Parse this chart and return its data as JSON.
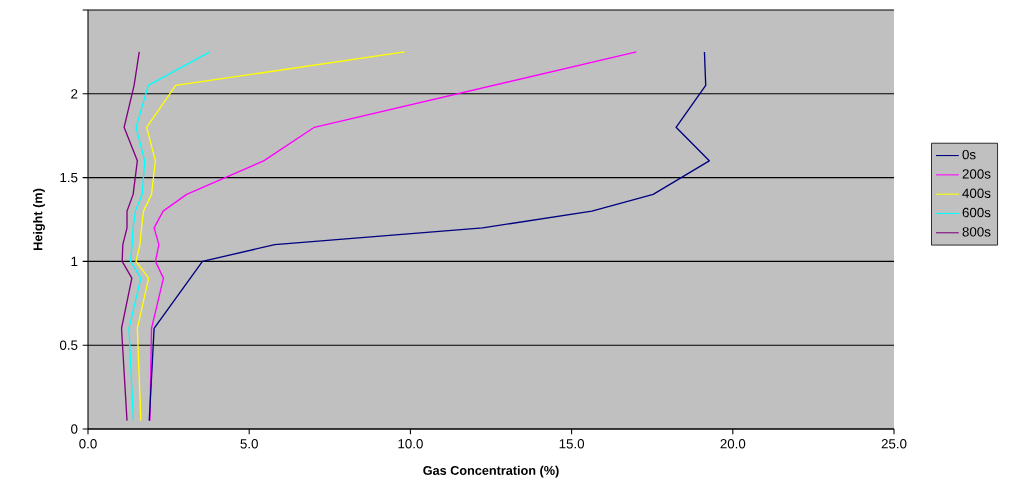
{
  "chart_data": {
    "type": "line",
    "xlabel": "Gas Concentration (%)",
    "ylabel": "Height (m)",
    "xlim": [
      0,
      25
    ],
    "ylim": [
      0,
      2.5
    ],
    "xticks": [
      {
        "value": 0,
        "label": "0.0"
      },
      {
        "value": 5,
        "label": "5.0"
      },
      {
        "value": 10,
        "label": "10.0"
      },
      {
        "value": 15,
        "label": "15.0"
      },
      {
        "value": 20,
        "label": "20.0"
      },
      {
        "value": 25,
        "label": "25.0"
      }
    ],
    "yticks": [
      0,
      0.5,
      1,
      1.5,
      2,
      {
        "value": 2.5,
        "label": null
      }
    ],
    "grid": "y",
    "legend": "right",
    "series": [
      {
        "name": "0s",
        "color": "#000080",
        "x": [
          1.9,
          2.05,
          3.55,
          5.79,
          12.24,
          15.63,
          17.53,
          19.27,
          18.24,
          19.16,
          19.12
        ],
        "values": [
          0.05,
          0.6,
          1.0,
          1.1,
          1.2,
          1.3,
          1.4,
          1.6,
          1.8,
          2.05,
          2.25
        ]
      },
      {
        "name": "200s",
        "color": "#ff00ff",
        "x": [
          1.92,
          1.97,
          2.34,
          2.09,
          2.2,
          2.05,
          2.33,
          3.06,
          5.45,
          7.02,
          17.01
        ],
        "values": [
          0.05,
          0.6,
          0.9,
          1.0,
          1.1,
          1.2,
          1.3,
          1.4,
          1.6,
          1.8,
          2.25
        ]
      },
      {
        "name": "400s",
        "color": "#ffff00",
        "x": [
          1.64,
          1.53,
          1.88,
          1.49,
          1.61,
          1.66,
          1.72,
          1.97,
          2.09,
          1.82,
          2.72,
          9.82
        ],
        "values": [
          0.05,
          0.6,
          0.9,
          1.0,
          1.1,
          1.2,
          1.3,
          1.4,
          1.6,
          1.8,
          2.05,
          2.25
        ]
      },
      {
        "name": "600s",
        "color": "#00ffff",
        "x": [
          1.41,
          1.27,
          1.64,
          1.32,
          1.37,
          1.4,
          1.47,
          1.68,
          1.76,
          1.49,
          1.87,
          3.78
        ],
        "values": [
          0.05,
          0.6,
          0.9,
          1.0,
          1.1,
          1.2,
          1.3,
          1.4,
          1.6,
          1.8,
          2.05,
          2.25
        ]
      },
      {
        "name": "800s",
        "color": "#800080",
        "x": [
          1.21,
          1.04,
          1.36,
          1.06,
          1.08,
          1.21,
          1.21,
          1.4,
          1.53,
          1.12,
          1.43,
          1.59
        ],
        "values": [
          0.05,
          0.6,
          0.9,
          1.0,
          1.1,
          1.2,
          1.3,
          1.4,
          1.6,
          1.8,
          2.05,
          2.25
        ]
      }
    ]
  }
}
